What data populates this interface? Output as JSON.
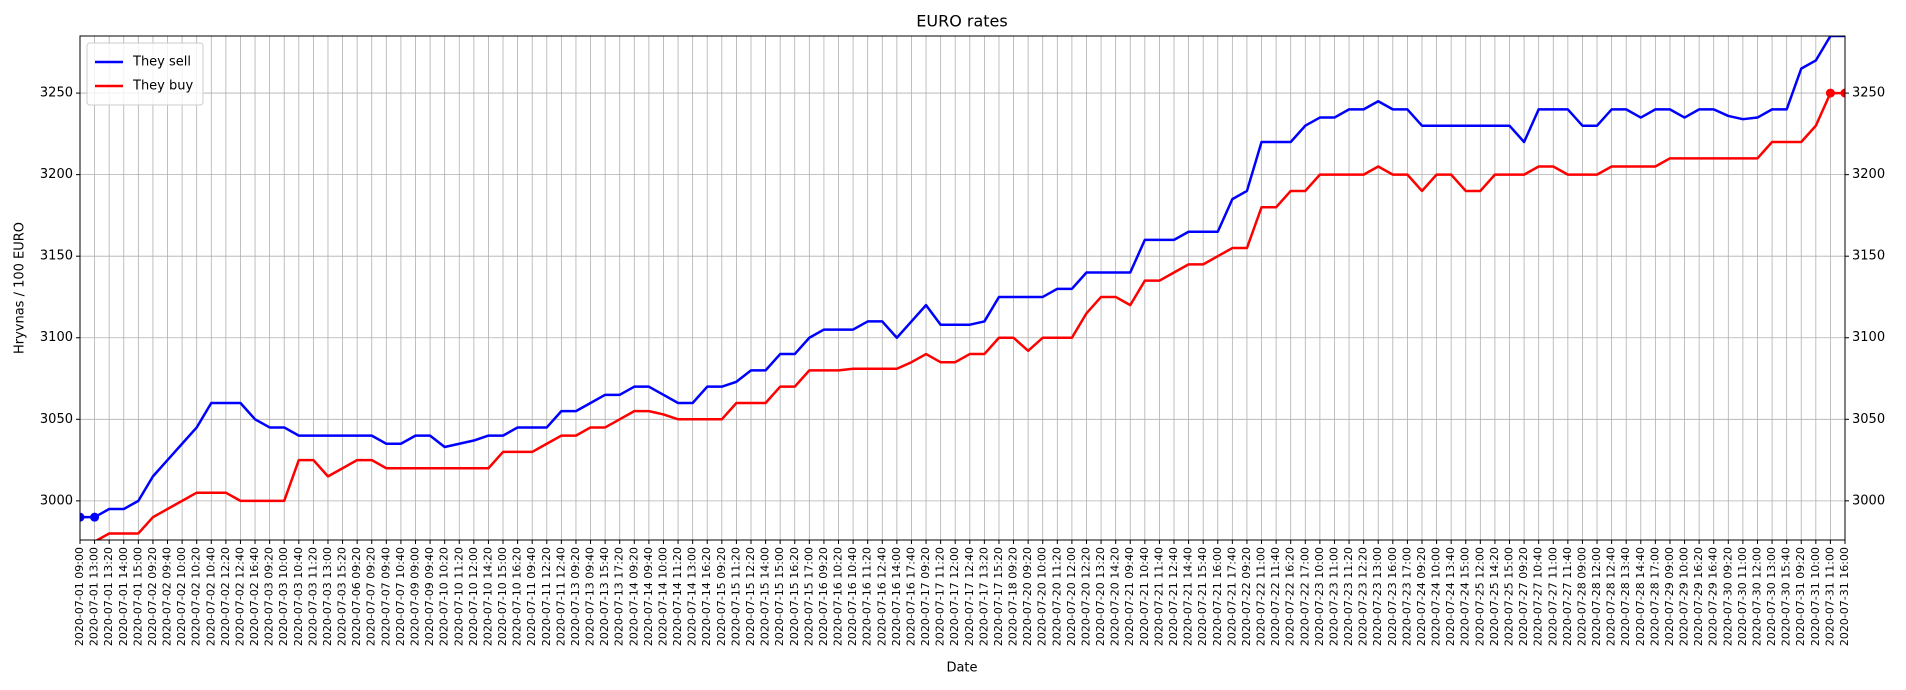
{
  "chart_data": {
    "type": "line",
    "title": "EURO rates",
    "xlabel": "Date",
    "ylabel": "Hryvnas / 100 EURO",
    "categories": [
      "2020-07-01 09:00",
      "2020-07-01 13:00",
      "2020-07-01 13:20",
      "2020-07-01 14:00",
      "2020-07-01 15:00",
      "2020-07-02 09:20",
      "2020-07-02 09:40",
      "2020-07-02 10:00",
      "2020-07-02 10:20",
      "2020-07-02 10:40",
      "2020-07-02 12:20",
      "2020-07-02 12:40",
      "2020-07-02 16:40",
      "2020-07-03 09:20",
      "2020-07-03 10:00",
      "2020-07-03 10:40",
      "2020-07-03 11:20",
      "2020-07-03 13:00",
      "2020-07-03 15:20",
      "2020-07-06 09:20",
      "2020-07-07 09:20",
      "2020-07-07 09:40",
      "2020-07-07 10:40",
      "2020-07-09 09:00",
      "2020-07-09 09:40",
      "2020-07-10 10:20",
      "2020-07-10 11:20",
      "2020-07-10 12:00",
      "2020-07-10 14:20",
      "2020-07-10 15:00",
      "2020-07-10 16:20",
      "2020-07-11 09:40",
      "2020-07-11 12:20",
      "2020-07-11 12:40",
      "2020-07-13 09:20",
      "2020-07-13 09:40",
      "2020-07-13 15:40",
      "2020-07-13 17:20",
      "2020-07-14 09:20",
      "2020-07-14 09:40",
      "2020-07-14 10:00",
      "2020-07-14 11:20",
      "2020-07-14 13:00",
      "2020-07-14 16:20",
      "2020-07-15 09:20",
      "2020-07-15 11:20",
      "2020-07-15 12:20",
      "2020-07-15 14:00",
      "2020-07-15 15:00",
      "2020-07-15 16:20",
      "2020-07-15 17:00",
      "2020-07-16 09:20",
      "2020-07-16 10:20",
      "2020-07-16 10:40",
      "2020-07-16 11:20",
      "2020-07-16 12:40",
      "2020-07-16 14:00",
      "2020-07-16 17:40",
      "2020-07-17 09:20",
      "2020-07-17 11:20",
      "2020-07-17 12:00",
      "2020-07-17 12:40",
      "2020-07-17 13:20",
      "2020-07-17 15:20",
      "2020-07-18 09:20",
      "2020-07-20 09:20",
      "2020-07-20 10:00",
      "2020-07-20 11:20",
      "2020-07-20 12:00",
      "2020-07-20 12:20",
      "2020-07-20 13:20",
      "2020-07-20 14:20",
      "2020-07-21 09:40",
      "2020-07-21 10:40",
      "2020-07-21 11:40",
      "2020-07-21 12:40",
      "2020-07-21 14:40",
      "2020-07-21 15:40",
      "2020-07-21 16:00",
      "2020-07-21 17:40",
      "2020-07-22 09:20",
      "2020-07-22 11:00",
      "2020-07-22 11:40",
      "2020-07-22 16:20",
      "2020-07-22 17:00",
      "2020-07-23 10:00",
      "2020-07-23 11:00",
      "2020-07-23 11:20",
      "2020-07-23 12:20",
      "2020-07-23 13:00",
      "2020-07-23 16:00",
      "2020-07-23 17:00",
      "2020-07-24 09:20",
      "2020-07-24 10:00",
      "2020-07-24 13:40",
      "2020-07-24 15:00",
      "2020-07-25 12:00",
      "2020-07-25 14:20",
      "2020-07-25 15:00",
      "2020-07-27 09:20",
      "2020-07-27 10:40",
      "2020-07-27 11:00",
      "2020-07-27 11:40",
      "2020-07-28 09:00",
      "2020-07-28 12:00",
      "2020-07-28 12:40",
      "2020-07-28 13:40",
      "2020-07-28 14:40",
      "2020-07-28 17:00",
      "2020-07-29 09:00",
      "2020-07-29 10:00",
      "2020-07-29 16:20",
      "2020-07-29 16:40",
      "2020-07-30 09:20",
      "2020-07-30 11:00",
      "2020-07-30 12:00",
      "2020-07-30 13:00",
      "2020-07-30 15:40",
      "2020-07-31 09:20",
      "2020-07-31 10:00",
      "2020-07-31 11:00",
      "2020-07-31 16:00"
    ],
    "series": [
      {
        "name": "They sell",
        "color": "#0000ff",
        "marker": "min",
        "values": [
          2990,
          2990,
          2995,
          2995,
          3000,
          3015,
          3025,
          3035,
          3045,
          3060,
          3060,
          3060,
          3050,
          3045,
          3045,
          3040,
          3040,
          3040,
          3040,
          3040,
          3040,
          3035,
          3035,
          3040,
          3040,
          3033,
          3035,
          3037,
          3040,
          3040,
          3045,
          3045,
          3045,
          3055,
          3055,
          3060,
          3065,
          3065,
          3070,
          3070,
          3065,
          3060,
          3060,
          3070,
          3070,
          3073,
          3080,
          3080,
          3090,
          3090,
          3100,
          3105,
          3105,
          3105,
          3110,
          3110,
          3100,
          3110,
          3120,
          3108,
          3108,
          3108,
          3110,
          3125,
          3125,
          3125,
          3125,
          3130,
          3130,
          3140,
          3140,
          3140,
          3140,
          3160,
          3160,
          3160,
          3165,
          3165,
          3165,
          3185,
          3190,
          3220,
          3220,
          3220,
          3230,
          3235,
          3235,
          3240,
          3240,
          3245,
          3240,
          3240,
          3230,
          3230,
          3230,
          3230,
          3230,
          3230,
          3230,
          3220,
          3240,
          3240,
          3240,
          3230,
          3230,
          3240,
          3240,
          3235,
          3240,
          3240,
          3235,
          3240,
          3240,
          3236,
          3234,
          3235,
          3240,
          3240,
          3265,
          3270,
          3285,
          3285
        ]
      },
      {
        "name": "They buy",
        "color": "#ff0000",
        "marker": "max",
        "values": [
          2975,
          2975,
          2980,
          2980,
          2980,
          2990,
          2995,
          3000,
          3005,
          3005,
          3005,
          3000,
          3000,
          3000,
          3000,
          3025,
          3025,
          3015,
          3020,
          3025,
          3025,
          3020,
          3020,
          3020,
          3020,
          3020,
          3020,
          3020,
          3020,
          3030,
          3030,
          3030,
          3035,
          3040,
          3040,
          3045,
          3045,
          3050,
          3055,
          3055,
          3053,
          3050,
          3050,
          3050,
          3050,
          3060,
          3060,
          3060,
          3070,
          3070,
          3080,
          3080,
          3080,
          3081,
          3081,
          3081,
          3081,
          3085,
          3090,
          3085,
          3085,
          3090,
          3090,
          3100,
          3100,
          3092,
          3100,
          3100,
          3100,
          3115,
          3125,
          3125,
          3120,
          3135,
          3135,
          3140,
          3145,
          3145,
          3150,
          3155,
          3155,
          3180,
          3180,
          3190,
          3190,
          3200,
          3200,
          3200,
          3200,
          3205,
          3200,
          3200,
          3190,
          3200,
          3200,
          3190,
          3190,
          3200,
          3200,
          3200,
          3205,
          3205,
          3200,
          3200,
          3200,
          3205,
          3205,
          3205,
          3205,
          3210,
          3210,
          3210,
          3210,
          3210,
          3210,
          3210,
          3220,
          3220,
          3220,
          3230,
          3250,
          3250
        ]
      }
    ],
    "ylim": [
      2976,
      3285
    ],
    "yticks": [
      3000,
      3050,
      3100,
      3150,
      3200,
      3250
    ],
    "grid": true,
    "legend": "upper left"
  }
}
